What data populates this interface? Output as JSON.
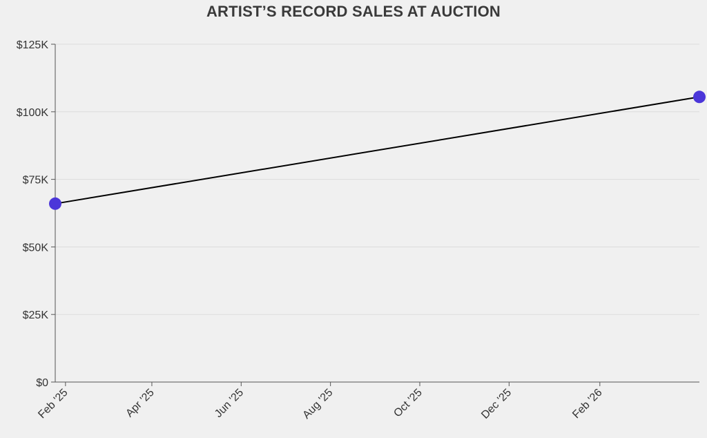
{
  "chart_data": {
    "type": "line",
    "title": "ARTIST’S RECORD SALES AT AUCTION",
    "xlabel": "",
    "ylabel": "",
    "x_type": "date",
    "xlim": [
      "2025-01-25",
      "2026-04-10"
    ],
    "ylim": [
      0,
      125000
    ],
    "y_ticks": [
      {
        "value": 0,
        "label": "$0"
      },
      {
        "value": 25000,
        "label": "$25K"
      },
      {
        "value": 50000,
        "label": "$50K"
      },
      {
        "value": 75000,
        "label": "$75K"
      },
      {
        "value": 100000,
        "label": "$100K"
      },
      {
        "value": 125000,
        "label": "$125K"
      }
    ],
    "x_ticks": [
      {
        "value": "2025-02-01",
        "label": "Feb '25"
      },
      {
        "value": "2025-04-01",
        "label": "Apr '25"
      },
      {
        "value": "2025-06-01",
        "label": "Jun '25"
      },
      {
        "value": "2025-08-01",
        "label": "Aug '25"
      },
      {
        "value": "2025-10-01",
        "label": "Oct '25"
      },
      {
        "value": "2025-12-01",
        "label": "Dec '25"
      },
      {
        "value": "2026-02-01",
        "label": "Feb '26"
      }
    ],
    "grid": "horizontal",
    "legend": "none",
    "series": [
      {
        "color": "#000000",
        "marker_color": "#4b36d9",
        "points": [
          {
            "x": "2025-01-25",
            "y": 66000
          },
          {
            "x": "2026-04-10",
            "y": 105500
          }
        ]
      }
    ]
  }
}
